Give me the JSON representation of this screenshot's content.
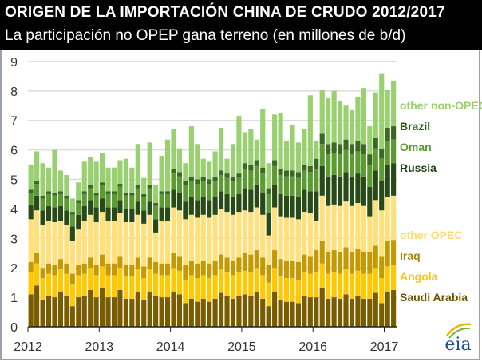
{
  "header": {
    "title": "ORIGEN DE LA IMPORTACIÓN CHINA DE CRUDO 2012/2017",
    "subtitle": "La participación no OPEP gana terreno (en millones de b/d)"
  },
  "logo": "eia",
  "chart_data": {
    "type": "bar",
    "stacked": true,
    "title": "ORIGEN DE LA IMPORTACIÓN CHINA DE CRUDO 2012/2017",
    "xlabel": "",
    "ylabel": "millones de b/d",
    "ylim": [
      0,
      9
    ],
    "grid": true,
    "legend": "right",
    "yticks": [
      "0",
      "1",
      "2",
      "3",
      "4",
      "5",
      "6",
      "7",
      "8",
      "9"
    ],
    "xticks": [
      "2012",
      "2013",
      "2014",
      "2015",
      "2016",
      "2017"
    ],
    "start_month": "2012-01",
    "months": 62,
    "series": [
      {
        "name": "Saudi Arabia",
        "color": "#7a5c00",
        "values": [
          1.1,
          1.4,
          0.9,
          1.05,
          1.0,
          1.2,
          1.05,
          0.7,
          1.0,
          1.05,
          1.25,
          1.0,
          1.3,
          1.0,
          1.0,
          1.25,
          0.95,
          0.95,
          1.2,
          0.9,
          1.2,
          1.05,
          1.0,
          1.0,
          1.2,
          1.1,
          0.8,
          0.95,
          0.85,
          0.95,
          0.85,
          0.95,
          1.15,
          1.05,
          0.95,
          1.05,
          1.1,
          1.05,
          1.2,
          0.95,
          0.7,
          1.2,
          0.9,
          0.85,
          0.85,
          0.8,
          1.05,
          1.0,
          1.0,
          1.3,
          0.95,
          1.0,
          0.95,
          1.1,
          0.95,
          1.05,
          0.95,
          0.95,
          1.15,
          0.8,
          1.2,
          1.25
        ]
      },
      {
        "name": "Angola",
        "color": "#ffc800",
        "values": [
          0.75,
          0.75,
          0.75,
          0.75,
          0.75,
          0.75,
          0.75,
          0.75,
          0.75,
          0.75,
          0.75,
          0.75,
          0.75,
          0.75,
          0.75,
          0.75,
          0.75,
          0.75,
          0.75,
          0.75,
          0.75,
          0.75,
          0.75,
          0.75,
          0.8,
          0.8,
          0.8,
          0.8,
          0.8,
          0.8,
          0.8,
          0.8,
          0.8,
          0.8,
          0.8,
          0.8,
          0.8,
          0.8,
          0.8,
          0.8,
          0.8,
          0.8,
          0.8,
          0.8,
          0.8,
          0.8,
          0.8,
          0.8,
          0.85,
          0.85,
          0.85,
          0.85,
          0.85,
          0.85,
          0.85,
          0.85,
          0.85,
          0.85,
          0.85,
          0.85,
          0.85,
          0.85
        ]
      },
      {
        "name": "Iraq",
        "color": "#c59a00",
        "values": [
          0.35,
          0.35,
          0.35,
          0.35,
          0.35,
          0.35,
          0.35,
          0.35,
          0.35,
          0.35,
          0.35,
          0.35,
          0.4,
          0.4,
          0.4,
          0.4,
          0.4,
          0.4,
          0.4,
          0.4,
          0.4,
          0.4,
          0.4,
          0.4,
          0.5,
          0.5,
          0.5,
          0.5,
          0.5,
          0.5,
          0.5,
          0.5,
          0.5,
          0.5,
          0.5,
          0.5,
          0.6,
          0.6,
          0.6,
          0.6,
          0.6,
          0.6,
          0.6,
          0.6,
          0.6,
          0.6,
          0.6,
          0.6,
          0.75,
          0.75,
          0.75,
          0.75,
          0.75,
          0.75,
          0.75,
          0.75,
          0.75,
          0.75,
          0.75,
          0.75,
          0.85,
          0.85
        ]
      },
      {
        "name": "other OPEC",
        "color": "#ffe07a",
        "values": [
          1.45,
          1.45,
          1.45,
          1.45,
          1.45,
          1.3,
          1.3,
          1.1,
          1.2,
          1.45,
          1.45,
          1.45,
          1.45,
          1.45,
          1.45,
          1.45,
          1.45,
          1.45,
          1.45,
          1.45,
          1.45,
          1.0,
          1.45,
          1.45,
          1.55,
          1.55,
          1.55,
          1.55,
          1.55,
          1.55,
          1.55,
          1.55,
          1.55,
          1.55,
          1.55,
          1.55,
          1.45,
          1.45,
          1.45,
          1.45,
          1.0,
          1.45,
          1.45,
          1.45,
          1.45,
          1.45,
          1.45,
          1.45,
          1.0,
          1.55,
          1.55,
          1.55,
          1.55,
          1.55,
          1.55,
          1.55,
          1.55,
          1.2,
          1.55,
          1.55,
          1.5,
          1.5
        ]
      },
      {
        "name": "Russia",
        "color": "#274a16",
        "values": [
          0.5,
          0.5,
          0.5,
          0.5,
          0.5,
          0.5,
          0.5,
          0.5,
          0.5,
          0.5,
          0.5,
          0.5,
          0.45,
          0.45,
          0.45,
          0.45,
          0.45,
          0.45,
          0.45,
          0.45,
          0.45,
          0.45,
          0.45,
          0.45,
          0.6,
          0.6,
          0.6,
          0.6,
          0.6,
          0.6,
          0.6,
          0.6,
          0.6,
          0.6,
          0.6,
          0.6,
          0.75,
          0.75,
          0.75,
          0.75,
          0.75,
          0.75,
          0.75,
          0.75,
          0.75,
          0.75,
          0.75,
          0.75,
          1.0,
          1.0,
          1.0,
          1.0,
          1.0,
          1.0,
          1.0,
          1.0,
          1.0,
          1.0,
          1.0,
          1.0,
          1.1,
          1.1
        ]
      },
      {
        "name": "Oman",
        "color": "#5c9a32",
        "values": [
          0.4,
          0.4,
          0.4,
          0.4,
          0.4,
          0.4,
          0.4,
          0.4,
          0.4,
          0.4,
          0.4,
          0.4,
          0.45,
          0.45,
          0.45,
          0.45,
          0.45,
          0.45,
          0.45,
          0.45,
          0.45,
          0.45,
          0.45,
          0.45,
          0.55,
          0.55,
          0.55,
          0.55,
          0.55,
          0.55,
          0.55,
          0.55,
          0.55,
          0.55,
          0.55,
          0.55,
          0.65,
          0.65,
          0.65,
          0.65,
          0.65,
          0.65,
          0.65,
          0.65,
          0.65,
          0.65,
          0.65,
          0.65,
          0.75,
          0.75,
          0.75,
          0.75,
          0.75,
          0.75,
          0.75,
          0.75,
          0.75,
          0.75,
          0.75,
          0.75,
          0.8,
          0.8
        ]
      },
      {
        "name": "Brazil",
        "color": "#3a6a22",
        "values": [
          0.1,
          0.1,
          0.1,
          0.1,
          0.1,
          0.1,
          0.1,
          0.1,
          0.1,
          0.1,
          0.1,
          0.1,
          0.1,
          0.1,
          0.1,
          0.1,
          0.1,
          0.1,
          0.1,
          0.1,
          0.1,
          0.1,
          0.1,
          0.1,
          0.15,
          0.15,
          0.15,
          0.15,
          0.15,
          0.15,
          0.15,
          0.15,
          0.15,
          0.15,
          0.15,
          0.15,
          0.2,
          0.2,
          0.2,
          0.2,
          0.2,
          0.2,
          0.2,
          0.2,
          0.2,
          0.2,
          0.2,
          0.2,
          0.35,
          0.35,
          0.35,
          0.35,
          0.35,
          0.35,
          0.35,
          0.35,
          0.35,
          0.35,
          0.35,
          0.35,
          0.45,
          0.45
        ]
      },
      {
        "name": "other non-OPEC",
        "color": "#99d070",
        "values": [
          0.85,
          1.0,
          1.1,
          0.8,
          1.45,
          0.7,
          0.7,
          0.45,
          0.6,
          1.0,
          0.95,
          1.05,
          1.0,
          0.8,
          0.8,
          0.8,
          1.15,
          0.85,
          1.4,
          0.55,
          1.45,
          0.6,
          1.2,
          1.75,
          1.35,
          0.8,
          0.6,
          1.7,
          1.2,
          0.6,
          0.6,
          0.85,
          1.45,
          0.5,
          1.1,
          1.95,
          1.05,
          1.2,
          0.7,
          2.0,
          0.85,
          1.55,
          1.9,
          1.0,
          1.55,
          1.0,
          1.2,
          2.4,
          0.6,
          1.5,
          1.55,
          1.75,
          1.45,
          1.15,
          1.15,
          1.5,
          1.9,
          0.95,
          1.55,
          2.55,
          1.3,
          1.55
        ]
      }
    ]
  }
}
